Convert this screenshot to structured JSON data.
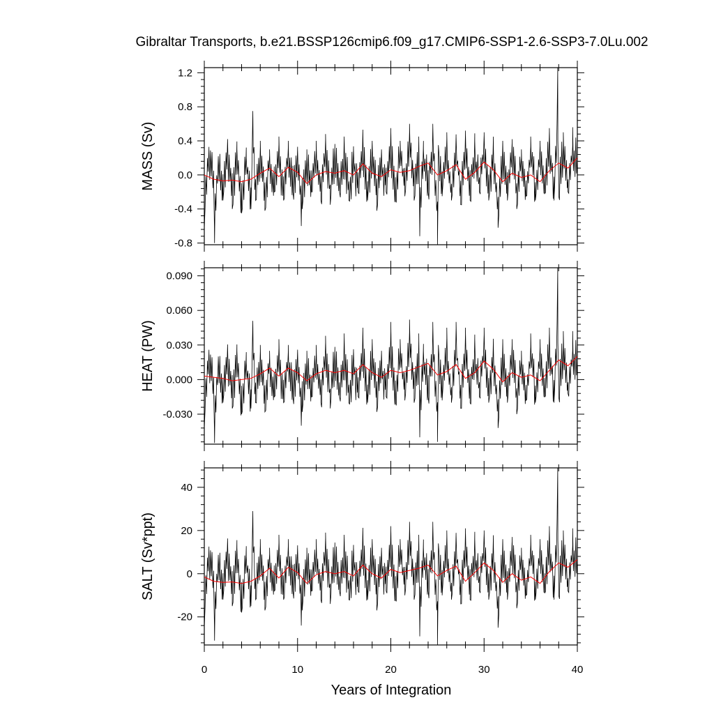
{
  "figure": {
    "title": "Gibraltar Transports, b.e21.BSSP126cmip6.f09_g17.CMIP6-SSP1-2.6-SSP3-7.0Lu.002",
    "xlabel": "Years of Integration",
    "x_tick_labels": [
      "0",
      "10",
      "20",
      "30",
      "40"
    ]
  },
  "chart_data": [
    {
      "type": "line",
      "ylabel": "MASS (Sv)",
      "xlim": [
        0,
        40
      ],
      "ylim": [
        -0.82,
        1.26
      ],
      "yticks": [
        -0.8,
        -0.4,
        0.0,
        0.4,
        0.8,
        1.2
      ],
      "ytick_labels": [
        "-0.8",
        "-0.4",
        "0.0",
        "0.4",
        "0.8",
        "1.2"
      ],
      "monthly_color": "#000000",
      "annual_color": "#ff0000",
      "monthly_samples": {
        "x": [
          0.0,
          0.5,
          1.0,
          1.1,
          1.5,
          2.0,
          2.5,
          3.0,
          3.5,
          4.0,
          4.5,
          5.0,
          5.2,
          5.5,
          6.0,
          6.5,
          7.0,
          7.5,
          8.0,
          8.5,
          9.0,
          9.5,
          10.0,
          10.4,
          10.5,
          11.0,
          11.5,
          12.0,
          12.5,
          13.0,
          13.5,
          14.0,
          14.5,
          15.0,
          15.5,
          16.0,
          16.5,
          17.0,
          17.5,
          18.0,
          18.5,
          19.0,
          19.5,
          20.0,
          20.5,
          21.0,
          21.5,
          22.0,
          22.5,
          23.0,
          23.1,
          23.5,
          24.0,
          24.5,
          25.0,
          25.1,
          25.5,
          26.0,
          26.5,
          27.0,
          27.5,
          28.0,
          28.5,
          29.0,
          29.5,
          30.0,
          30.5,
          31.0,
          31.5,
          32.0,
          32.5,
          33.0,
          33.5,
          34.0,
          34.5,
          35.0,
          35.5,
          36.0,
          36.5,
          37.0,
          37.5,
          37.9,
          38.0,
          38.5,
          39.0,
          39.5,
          40.0
        ],
        "y": [
          -0.63,
          0.3,
          -0.1,
          -0.8,
          0.2,
          -0.3,
          0.42,
          -0.4,
          0.3,
          -0.45,
          0.2,
          -0.4,
          0.75,
          -0.3,
          0.4,
          -0.42,
          0.3,
          -0.2,
          0.45,
          -0.3,
          0.4,
          -0.2,
          0.3,
          -0.6,
          -0.4,
          0.3,
          -0.2,
          0.4,
          -0.3,
          0.48,
          -0.35,
          0.3,
          -0.2,
          0.45,
          -0.3,
          0.3,
          -0.2,
          0.52,
          -0.3,
          0.4,
          -0.42,
          0.3,
          -0.2,
          0.55,
          -0.3,
          0.4,
          -0.25,
          0.6,
          -0.3,
          0.45,
          -0.72,
          0.3,
          -0.2,
          0.6,
          -0.82,
          0.35,
          -0.25,
          0.5,
          -0.3,
          0.45,
          -0.35,
          0.52,
          -0.3,
          0.4,
          -0.2,
          0.5,
          -0.3,
          0.35,
          -0.62,
          0.4,
          -0.3,
          0.42,
          -0.4,
          0.3,
          -0.25,
          0.45,
          -0.3,
          0.4,
          -0.22,
          0.55,
          -0.3,
          1.26,
          -0.25,
          0.5,
          -0.2,
          0.56,
          0.2
        ]
      },
      "annual_mean": {
        "x": [
          0,
          1,
          2,
          3,
          4,
          5,
          6,
          7,
          8,
          9,
          10,
          11,
          12,
          13,
          14,
          15,
          16,
          17,
          18,
          19,
          20,
          21,
          22,
          23,
          24,
          25,
          26,
          27,
          28,
          29,
          30,
          31,
          32,
          33,
          34,
          35,
          36,
          37,
          38,
          39,
          40
        ],
        "y": [
          0.0,
          -0.05,
          -0.07,
          -0.06,
          -0.08,
          -0.05,
          0.02,
          0.08,
          -0.02,
          0.09,
          0.03,
          -0.1,
          0.0,
          0.04,
          0.02,
          0.05,
          0.0,
          0.13,
          0.02,
          -0.02,
          0.06,
          0.03,
          0.05,
          0.1,
          0.14,
          0.0,
          0.05,
          0.12,
          -0.05,
          0.03,
          0.15,
          0.06,
          -0.08,
          0.02,
          -0.03,
          0.0,
          -0.08,
          0.05,
          0.14,
          0.08,
          0.2
        ]
      }
    },
    {
      "type": "line",
      "ylabel": "HEAT (PW)",
      "xlim": [
        0,
        40
      ],
      "ylim": [
        -0.056,
        0.097
      ],
      "yticks": [
        -0.03,
        0.0,
        0.03,
        0.06,
        0.09
      ],
      "ytick_labels": [
        "-0.030",
        "0.000",
        "0.030",
        "0.060",
        "0.090"
      ],
      "monthly_color": "#000000",
      "annual_color": "#ff0000",
      "monthly_samples": {
        "x": [
          0.0,
          0.5,
          1.0,
          1.1,
          1.5,
          2.0,
          2.5,
          3.0,
          3.5,
          4.0,
          4.5,
          5.0,
          5.2,
          5.5,
          6.0,
          6.5,
          7.0,
          7.5,
          8.0,
          8.5,
          9.0,
          9.5,
          10.0,
          10.4,
          10.5,
          11.0,
          11.5,
          12.0,
          12.5,
          13.0,
          13.5,
          14.0,
          14.5,
          15.0,
          15.5,
          16.0,
          16.5,
          17.0,
          17.5,
          18.0,
          18.5,
          19.0,
          19.5,
          20.0,
          20.5,
          21.0,
          21.5,
          22.0,
          22.5,
          23.0,
          23.1,
          23.5,
          24.0,
          24.5,
          25.0,
          25.1,
          25.5,
          26.0,
          26.5,
          27.0,
          27.5,
          28.0,
          28.5,
          29.0,
          29.5,
          30.0,
          30.5,
          31.0,
          31.5,
          32.0,
          32.5,
          33.0,
          33.5,
          34.0,
          34.5,
          35.0,
          35.5,
          36.0,
          36.5,
          37.0,
          37.5,
          37.9,
          38.0,
          38.5,
          39.0,
          39.5,
          40.0
        ],
        "y": [
          -0.042,
          0.025,
          -0.01,
          -0.055,
          0.02,
          -0.02,
          0.03,
          -0.025,
          0.025,
          -0.03,
          0.015,
          -0.025,
          0.051,
          -0.02,
          0.03,
          -0.028,
          0.025,
          -0.015,
          0.035,
          -0.02,
          0.03,
          -0.015,
          0.025,
          -0.04,
          -0.028,
          0.025,
          -0.015,
          0.03,
          -0.02,
          0.038,
          -0.025,
          0.025,
          -0.015,
          0.04,
          -0.02,
          0.025,
          -0.015,
          0.045,
          -0.02,
          0.035,
          -0.028,
          0.025,
          -0.015,
          0.05,
          -0.02,
          0.035,
          -0.018,
          0.052,
          -0.02,
          0.04,
          -0.05,
          0.025,
          -0.015,
          0.05,
          -0.054,
          0.03,
          -0.018,
          0.045,
          -0.02,
          0.05,
          -0.025,
          0.045,
          -0.02,
          0.035,
          -0.015,
          0.045,
          -0.02,
          0.03,
          -0.042,
          0.035,
          -0.02,
          0.035,
          -0.03,
          0.025,
          -0.018,
          0.04,
          -0.02,
          0.035,
          -0.015,
          0.045,
          -0.02,
          0.097,
          -0.015,
          0.042,
          -0.012,
          0.042,
          0.02
        ]
      },
      "annual_mean": {
        "x": [
          0,
          1,
          2,
          3,
          4,
          5,
          6,
          7,
          8,
          9,
          10,
          11,
          12,
          13,
          14,
          15,
          16,
          17,
          18,
          19,
          20,
          21,
          22,
          23,
          24,
          25,
          26,
          27,
          28,
          29,
          30,
          31,
          32,
          33,
          34,
          35,
          36,
          37,
          38,
          39,
          40
        ],
        "y": [
          0.003,
          0.002,
          0.001,
          -0.001,
          0.0,
          0.001,
          0.005,
          0.01,
          0.003,
          0.01,
          0.006,
          -0.001,
          0.005,
          0.008,
          0.006,
          0.008,
          0.005,
          0.013,
          0.006,
          0.002,
          0.008,
          0.006,
          0.008,
          0.011,
          0.014,
          0.004,
          0.007,
          0.013,
          0.001,
          0.006,
          0.016,
          0.009,
          -0.002,
          0.006,
          0.002,
          0.004,
          -0.001,
          0.008,
          0.017,
          0.012,
          0.02
        ]
      }
    },
    {
      "type": "line",
      "ylabel": "SALT (Sv*ppt)",
      "xlim": [
        0,
        40
      ],
      "ylim": [
        -33,
        49
      ],
      "yticks": [
        -20,
        0,
        20,
        40
      ],
      "ytick_labels": [
        "-20",
        "0",
        "20",
        "40"
      ],
      "monthly_color": "#000000",
      "annual_color": "#ff0000",
      "monthly_samples": {
        "x": [
          0.0,
          0.5,
          1.0,
          1.1,
          1.5,
          2.0,
          2.5,
          3.0,
          3.5,
          4.0,
          4.5,
          5.0,
          5.2,
          5.5,
          6.0,
          6.5,
          7.0,
          7.5,
          8.0,
          8.5,
          9.0,
          9.5,
          10.0,
          10.4,
          10.5,
          11.0,
          11.5,
          12.0,
          12.5,
          13.0,
          13.5,
          14.0,
          14.5,
          15.0,
          15.5,
          16.0,
          16.5,
          17.0,
          17.5,
          18.0,
          18.5,
          19.0,
          19.5,
          20.0,
          20.5,
          21.0,
          21.5,
          22.0,
          22.5,
          23.0,
          23.1,
          23.5,
          24.0,
          24.5,
          25.0,
          25.1,
          25.5,
          26.0,
          26.5,
          27.0,
          27.5,
          28.0,
          28.5,
          29.0,
          29.5,
          30.0,
          30.5,
          31.0,
          31.5,
          32.0,
          32.5,
          33.0,
          33.5,
          34.0,
          34.5,
          35.0,
          35.5,
          36.0,
          36.5,
          37.0,
          37.5,
          37.9,
          38.0,
          38.5,
          39.0,
          39.5,
          40.0
        ],
        "y": [
          -25,
          11,
          -5,
          -31,
          8,
          -12,
          16,
          -15,
          12,
          -18,
          8,
          -15,
          29,
          -12,
          16,
          -17,
          12,
          -8,
          18,
          -12,
          16,
          -8,
          12,
          -24,
          -17,
          12,
          -8,
          16,
          -12,
          19,
          -14,
          12,
          -8,
          18,
          -12,
          12,
          -8,
          21,
          -12,
          16,
          -17,
          12,
          -8,
          22,
          -12,
          16,
          -10,
          24,
          -12,
          18,
          -29,
          12,
          -8,
          24,
          -33,
          14,
          -10,
          20,
          -12,
          18,
          -14,
          21,
          -12,
          16,
          -8,
          20,
          -12,
          14,
          -25,
          16,
          -12,
          17,
          -16,
          12,
          -10,
          18,
          -12,
          16,
          -9,
          22,
          -12,
          49,
          -10,
          20,
          -8,
          21,
          7
        ]
      },
      "annual_mean": {
        "x": [
          0,
          1,
          2,
          3,
          4,
          5,
          6,
          7,
          8,
          9,
          10,
          11,
          12,
          13,
          14,
          15,
          16,
          17,
          18,
          19,
          20,
          21,
          22,
          23,
          24,
          25,
          26,
          27,
          28,
          29,
          30,
          31,
          32,
          33,
          34,
          35,
          36,
          37,
          38,
          39,
          40
        ],
        "y": [
          -1.5,
          -3.5,
          -4.0,
          -3.8,
          -4.5,
          -3.5,
          -1.0,
          2.5,
          -2.0,
          3.0,
          0.5,
          -4.5,
          -0.5,
          1.0,
          0.0,
          1.0,
          -1.0,
          4.0,
          0.0,
          -2.0,
          2.0,
          0.5,
          1.5,
          2.5,
          4.0,
          -1.0,
          1.5,
          3.5,
          -3.5,
          0.5,
          5.0,
          1.5,
          -4.0,
          0.0,
          -3.0,
          -1.5,
          -4.5,
          1.0,
          5.0,
          3.0,
          6.5
        ]
      }
    }
  ]
}
